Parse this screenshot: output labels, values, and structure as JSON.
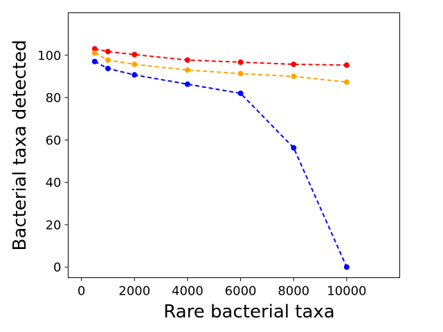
{
  "chart_data": {
    "type": "line",
    "title": "",
    "xlabel": "Rare bacterial taxa",
    "ylabel": "Bacterial taxa detected",
    "xlim": [
      -500,
      12000
    ],
    "ylim": [
      -5,
      120
    ],
    "xticks": [
      0,
      2000,
      4000,
      6000,
      8000,
      10000
    ],
    "yticks": [
      0,
      20,
      40,
      60,
      80,
      100
    ],
    "grid": false,
    "legend": "none",
    "line_style": "dashed",
    "marker": "circle",
    "x": [
      500,
      1000,
      2000,
      4000,
      6000,
      8000,
      10000
    ],
    "series": [
      {
        "color": "#ff0000",
        "values": [
          103,
          101.7,
          100.3,
          97.7,
          96.7,
          95.7,
          95.3
        ]
      },
      {
        "color": "#ffa500",
        "values": [
          101,
          97.7,
          95.7,
          93,
          91.3,
          90,
          87.3
        ]
      },
      {
        "color": "#0000ff",
        "values": [
          97,
          93.7,
          90.7,
          86.3,
          82,
          56.3,
          0
        ]
      }
    ]
  }
}
